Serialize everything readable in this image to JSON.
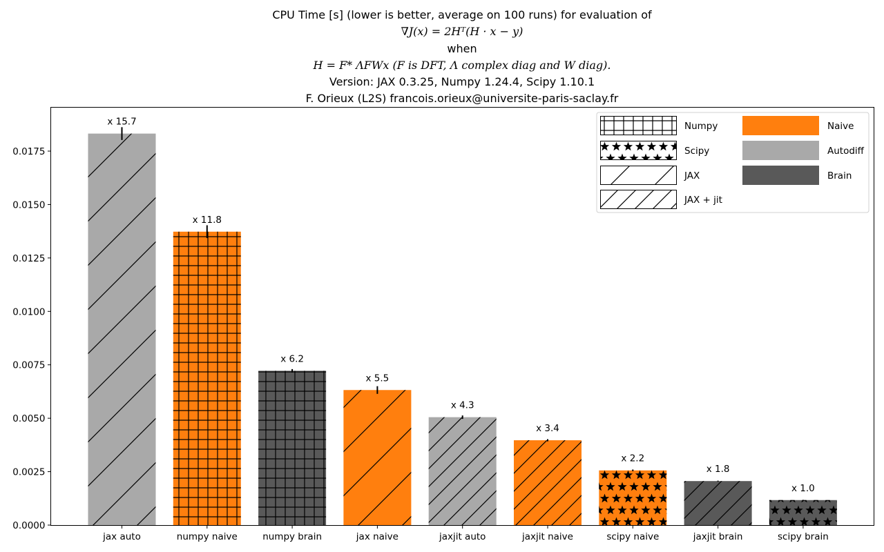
{
  "title_lines": [
    "CPU Time [s] (lower is better, average on 100 runs) for evaluation of",
    "∇J(x) = 2Hᵀ(H · x − y)",
    "when",
    "H = F* ΛFWx (F is DFT, Λ complex diag and W diag).",
    "Version: JAX 0.3.25, Numpy 1.24.4, Scipy 1.10.1",
    "F. Orieux (L2S) francois.orieux@universite-paris-saclay.fr"
  ],
  "chart_data": {
    "type": "bar",
    "title": "CPU Time [s] (lower is better, average on 100 runs) for evaluation of ∇J(x) = 2Hᵀ(H · x − y) when H = F* ΛFWx (F is DFT, Λ complex diag and W diag). Version: JAX 0.3.25, Numpy 1.24.4, Scipy 1.10.1 — F. Orieux (L2S) francois.orieux@universite-paris-saclay.fr",
    "xlabel": "",
    "ylabel": "",
    "ylim": [
      0,
      0.0195
    ],
    "yticks": [
      0.0,
      0.0025,
      0.005,
      0.0075,
      0.01,
      0.0125,
      0.015,
      0.0175
    ],
    "ytick_labels": [
      "0.0000",
      "0.0025",
      "0.0050",
      "0.0075",
      "0.0100",
      "0.0125",
      "0.0150",
      "0.0175"
    ],
    "categories": [
      "jax auto",
      "numpy naive",
      "numpy brain",
      "jax naive",
      "jaxjit auto",
      "jaxjit naive",
      "scipy naive",
      "jaxjit brain",
      "scipy brain"
    ],
    "values": [
      0.01832,
      0.01373,
      0.00722,
      0.00632,
      0.00505,
      0.00397,
      0.00256,
      0.00206,
      0.00117
    ],
    "errors": [
      0.0003,
      0.0003,
      8e-05,
      0.00018,
      8e-05,
      5e-05,
      4e-05,
      2e-05,
      1e-05
    ],
    "ratio_labels": [
      "x 15.7",
      "x 11.8",
      "x 6.2",
      "x 5.5",
      "x 4.3",
      "x 3.4",
      "x 2.2",
      "x 1.8",
      "x 1.0"
    ],
    "library": [
      "JAX",
      "Numpy",
      "Numpy",
      "JAX",
      "JAX + jit",
      "JAX + jit",
      "Scipy",
      "JAX + jit",
      "Scipy"
    ],
    "method": [
      "Autodiff",
      "Naive",
      "Brain",
      "Naive",
      "Autodiff",
      "Naive",
      "Naive",
      "Brain",
      "Brain"
    ],
    "legend": {
      "placement": "top-right",
      "libraries": [
        {
          "name": "Numpy",
          "hatch": "grid"
        },
        {
          "name": "Scipy",
          "hatch": "stars"
        },
        {
          "name": "JAX",
          "hatch": "wide-diagonal"
        },
        {
          "name": "JAX + jit",
          "hatch": "dense-diagonal"
        }
      ],
      "methods": [
        {
          "name": "Naive",
          "color": "#ff7f0e"
        },
        {
          "name": "Autodiff",
          "color": "#a9a9a9"
        },
        {
          "name": "Brain",
          "color": "#595959"
        }
      ]
    }
  }
}
